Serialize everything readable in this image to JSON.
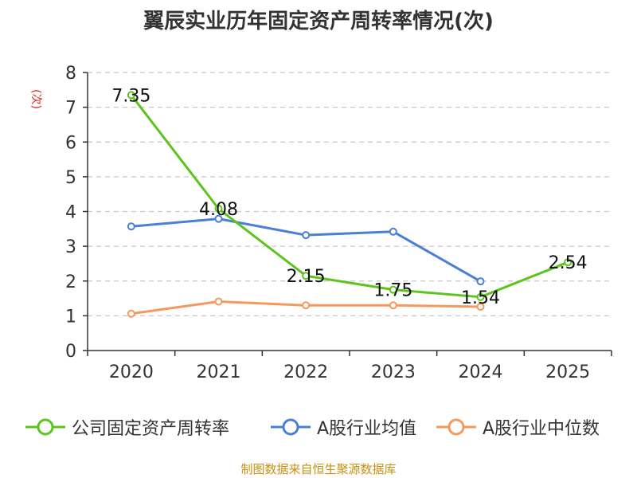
{
  "chart_data": {
    "type": "line",
    "title": "翼辰实业历年固定资产周转率情况(次)",
    "ylabel": "(次)",
    "xlabel": "",
    "categories": [
      "2020",
      "2021",
      "2022",
      "2023",
      "2024",
      "2025"
    ],
    "ylim": [
      0,
      8
    ],
    "yticks": [
      "0",
      "1",
      "2",
      "3",
      "4",
      "5",
      "6",
      "7",
      "8"
    ],
    "grid": true,
    "legend_position": "bottom",
    "series": [
      {
        "name": "公司固定资产周转率",
        "color": "#5ec41d",
        "values": [
          7.35,
          4.08,
          2.15,
          1.75,
          1.54,
          2.54
        ],
        "labels": [
          "7.35",
          "4.08",
          "2.15",
          "1.75",
          "1.54",
          "2.54"
        ]
      },
      {
        "name": "A股行业均值",
        "color": "#4a7fd6",
        "values": [
          3.57,
          3.79,
          3.32,
          3.42,
          1.99,
          null
        ]
      },
      {
        "name": "A股行业中位数",
        "color": "#f59a5c",
        "values": [
          1.06,
          1.41,
          1.3,
          1.3,
          1.26,
          null
        ]
      }
    ]
  },
  "source_text": "制图数据来自恒生聚源数据库"
}
